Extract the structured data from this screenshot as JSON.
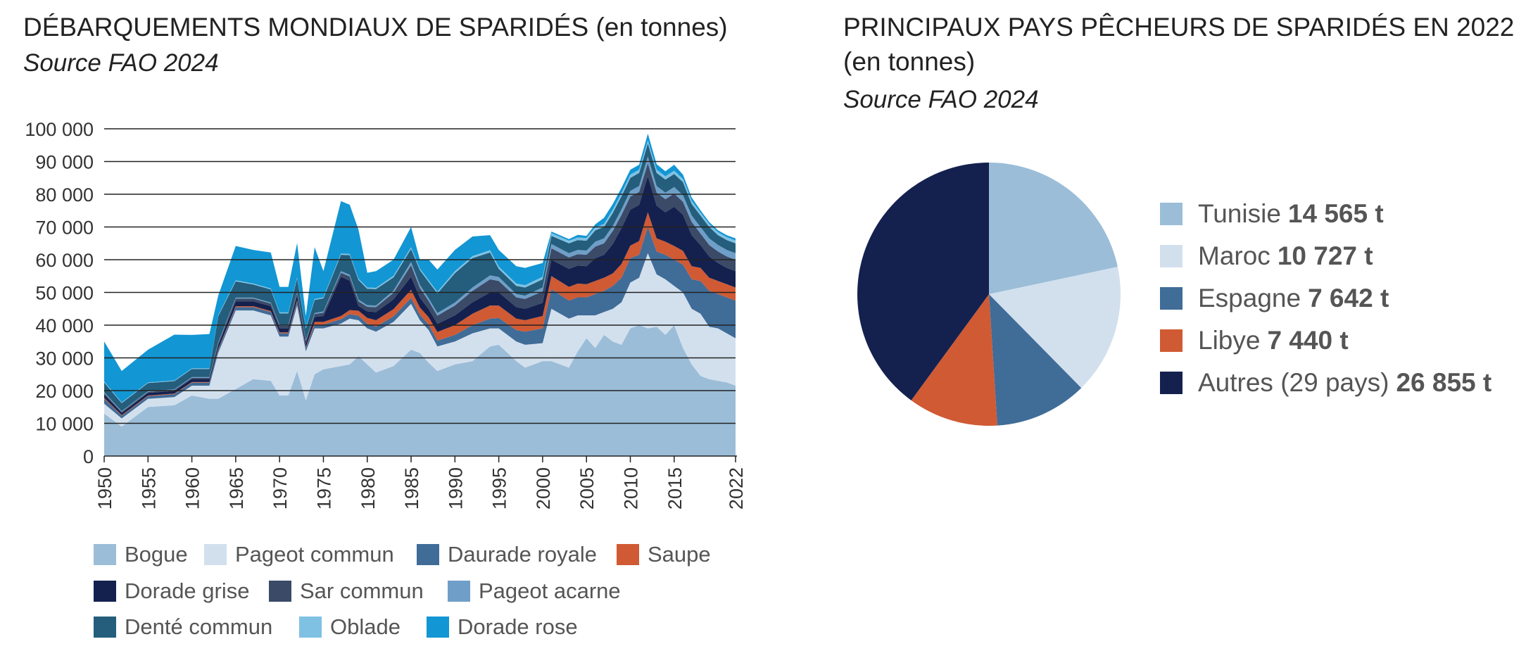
{
  "left": {
    "title": "DÉBARQUEMENTS MONDIAUX DE SPARIDÉS (en tonnes)",
    "source": "Source FAO 2024"
  },
  "right": {
    "title_line1": "PRINCIPAUX PAYS PÊCHEURS DE SPARIDÉS EN 2022",
    "title_line2": "(en tonnes)",
    "source": "Source FAO 2024"
  },
  "chart_data": [
    {
      "type": "area",
      "stacked": true,
      "ylim": [
        0,
        100000
      ],
      "yticks": [
        0,
        10000,
        20000,
        30000,
        40000,
        50000,
        60000,
        70000,
        80000,
        90000,
        100000
      ],
      "ytick_labels": [
        "0",
        "10 000",
        "20 000",
        "30 000",
        "40 000",
        "50 000",
        "60 000",
        "70 000",
        "80 000",
        "90 000",
        "100 000"
      ],
      "xlim": [
        1950,
        2022
      ],
      "xticks": [
        "1950",
        "1955",
        "1960",
        "1965",
        "1970",
        "1975",
        "1980",
        "1985",
        "1990",
        "1995",
        "2000",
        "2005",
        "2010",
        "2015",
        "2022"
      ],
      "grid": "horizontal",
      "legend_position": "bottom",
      "x": [
        1950,
        1952,
        1955,
        1958,
        1960,
        1962,
        1963,
        1965,
        1967,
        1969,
        1970,
        1971,
        1972,
        1973,
        1974,
        1975,
        1977,
        1978,
        1979,
        1980,
        1981,
        1983,
        1985,
        1986,
        1987,
        1988,
        1990,
        1992,
        1994,
        1995,
        1997,
        1998,
        2000,
        2001,
        2003,
        2004,
        2005,
        2006,
        2007,
        2008,
        2009,
        2010,
        2011,
        2012,
        2013,
        2014,
        2015,
        2016,
        2017,
        2018,
        2019,
        2020,
        2021,
        2022
      ],
      "series": [
        {
          "name": "Bogue",
          "color": "#9bbdd8",
          "values": [
            13000,
            9000,
            15000,
            15500,
            18500,
            17500,
            17500,
            20500,
            23500,
            23000,
            18500,
            18500,
            26000,
            17000,
            25000,
            26500,
            27500,
            28000,
            30500,
            28000,
            25500,
            27500,
            32500,
            31500,
            28500,
            26000,
            28000,
            29000,
            33500,
            34000,
            29000,
            27000,
            29000,
            29000,
            27000,
            32000,
            36000,
            33000,
            37000,
            35000,
            34000,
            39000,
            40000,
            39000,
            39500,
            37000,
            40000,
            33000,
            28000,
            24500,
            23500,
            23000,
            22500,
            21500
          ]
        },
        {
          "name": "Pageot commun",
          "color": "#d2e0ee",
          "values": [
            3000,
            2500,
            2500,
            2500,
            3000,
            4000,
            14000,
            24000,
            21000,
            20000,
            18000,
            18000,
            20000,
            15000,
            14000,
            12500,
            13000,
            14000,
            11000,
            11000,
            12500,
            13500,
            14000,
            10000,
            10000,
            7500,
            7000,
            8500,
            5500,
            5000,
            6000,
            7000,
            5500,
            16000,
            15000,
            11000,
            7000,
            10000,
            7000,
            10000,
            13000,
            14000,
            14500,
            23000,
            16000,
            17000,
            12000,
            17000,
            17000,
            19000,
            16000,
            16000,
            15000,
            14500
          ]
        },
        {
          "name": "Daurade royale",
          "color": "#406c98",
          "values": [
            1500,
            800,
            800,
            900,
            900,
            900,
            900,
            1000,
            1000,
            1000,
            1000,
            1000,
            1200,
            1000,
            1200,
            1200,
            1300,
            1400,
            1400,
            1400,
            1500,
            1700,
            1800,
            1700,
            1700,
            1800,
            2000,
            2500,
            3000,
            3200,
            3500,
            4000,
            4500,
            6000,
            5500,
            5500,
            5500,
            6500,
            6500,
            7000,
            7500,
            7500,
            7000,
            8000,
            7000,
            7500,
            8000,
            8500,
            9000,
            10000,
            11000,
            10500,
            11000,
            11500
          ]
        },
        {
          "name": "Saupe",
          "color": "#d05a34",
          "values": [
            300,
            200,
            200,
            200,
            200,
            200,
            300,
            300,
            300,
            300,
            300,
            300,
            400,
            300,
            800,
            800,
            1000,
            1200,
            1500,
            1800,
            2000,
            2200,
            2500,
            2200,
            2200,
            2600,
            3000,
            3500,
            4000,
            3800,
            3500,
            3500,
            3800,
            4000,
            4200,
            4200,
            4000,
            4000,
            4000,
            3800,
            4200,
            3800,
            4200,
            4500,
            4000,
            4000,
            4200,
            4200,
            4000,
            4000,
            4000,
            4000,
            4000,
            4000
          ]
        },
        {
          "name": "Dorade grise",
          "color": "#14214f",
          "values": [
            1000,
            700,
            800,
            800,
            1000,
            1000,
            1200,
            1500,
            1500,
            1500,
            1300,
            1300,
            1500,
            1200,
            1500,
            1800,
            12000,
            9000,
            1500,
            2000,
            2500,
            3000,
            4000,
            3000,
            2500,
            2500,
            3000,
            3500,
            4000,
            4000,
            3500,
            3500,
            4000,
            5000,
            5500,
            5500,
            5500,
            7000,
            7000,
            9000,
            11000,
            11000,
            11000,
            11000,
            10000,
            9000,
            12000,
            11000,
            9500,
            7000,
            6500,
            5500,
            5000,
            5000
          ]
        },
        {
          "name": "Sar commun",
          "color": "#3a4a67",
          "values": [
            400,
            300,
            300,
            300,
            300,
            300,
            500,
            800,
            800,
            800,
            700,
            700,
            900,
            700,
            900,
            1000,
            1200,
            1300,
            1400,
            1400,
            1500,
            2000,
            3500,
            3000,
            2500,
            2500,
            3000,
            3500,
            4000,
            3500,
            3000,
            3000,
            3500,
            3500,
            3500,
            3500,
            3500,
            3500,
            3500,
            4000,
            4000,
            4000,
            4000,
            4000,
            4000,
            4000,
            4000,
            4000,
            4000,
            3500,
            3500,
            3500,
            3500,
            3500
          ]
        },
        {
          "name": "Pageot acarne",
          "color": "#6f9fc8",
          "values": [
            300,
            200,
            200,
            200,
            200,
            200,
            300,
            300,
            300,
            300,
            300,
            300,
            300,
            300,
            300,
            400,
            500,
            500,
            500,
            500,
            500,
            700,
            1000,
            900,
            800,
            800,
            900,
            1000,
            1200,
            1200,
            1000,
            1000,
            1200,
            1300,
            1300,
            1300,
            1300,
            1500,
            1500,
            1500,
            1700,
            1700,
            1800,
            2000,
            2000,
            2000,
            2000,
            2000,
            2000,
            2000,
            2000,
            2000,
            2000,
            2000
          ]
        },
        {
          "name": "Denté commun",
          "color": "#245e7c",
          "values": [
            3000,
            2500,
            2500,
            2500,
            2500,
            2500,
            8000,
            5000,
            4000,
            4000,
            3500,
            3500,
            4000,
            3500,
            4000,
            4000,
            5000,
            6000,
            6000,
            5000,
            5000,
            4000,
            4000,
            4500,
            5000,
            6000,
            9000,
            9000,
            7000,
            2500,
            2500,
            2500,
            2500,
            2500,
            3000,
            3000,
            3000,
            3500,
            3500,
            4000,
            4000,
            4000,
            4000,
            4000,
            4000,
            4000,
            4000,
            4000,
            3500,
            3500,
            3500,
            3000,
            3000,
            3000
          ]
        },
        {
          "name": "Oblade",
          "color": "#7fc1e3",
          "values": [
            300,
            200,
            200,
            200,
            200,
            200,
            300,
            300,
            300,
            300,
            300,
            300,
            300,
            300,
            300,
            300,
            400,
            400,
            400,
            400,
            400,
            500,
            500,
            500,
            500,
            500,
            600,
            600,
            700,
            700,
            700,
            700,
            800,
            800,
            800,
            800,
            800,
            900,
            900,
            1000,
            1000,
            1000,
            1000,
            1000,
            1000,
            1000,
            1000,
            1000,
            1000,
            900,
            900,
            900,
            900,
            900
          ]
        },
        {
          "name": "Dorade rose",
          "color": "#1296d4",
          "values": [
            12200,
            9600,
            10000,
            14000,
            10200,
            10500,
            6000,
            10500,
            10300,
            11000,
            7800,
            7800,
            10500,
            3500,
            15800,
            8000,
            16000,
            15000,
            15000,
            4500,
            5100,
            4900,
            6200,
            2700,
            6300,
            6800,
            6500,
            6000,
            4600,
            5100,
            5300,
            5300,
            4200,
            500,
            500,
            800,
            700,
            900,
            1900,
            1700,
            1600,
            1500,
            1500,
            2000,
            1700,
            1500,
            1800,
            1300,
            1000,
            700,
            600,
            600,
            600,
            600
          ]
        }
      ]
    },
    {
      "type": "pie",
      "start": "top",
      "direction": "clockwise",
      "slices": [
        {
          "label": "Tunisie",
          "value": 14565,
          "value_label": "14 565 t",
          "color": "#9bbdd8"
        },
        {
          "label": "Maroc",
          "value": 10727,
          "value_label": "10 727 t",
          "color": "#d2e0ee"
        },
        {
          "label": "Espagne",
          "value": 7642,
          "value_label": "7 642 t",
          "color": "#406c98"
        },
        {
          "label": "Libye",
          "value": 7440,
          "value_label": "7 440 t",
          "color": "#d05a34"
        },
        {
          "label": "Autres (29 pays)",
          "value": 26855,
          "value_label": "26 855 t",
          "color": "#14214f"
        }
      ]
    }
  ]
}
